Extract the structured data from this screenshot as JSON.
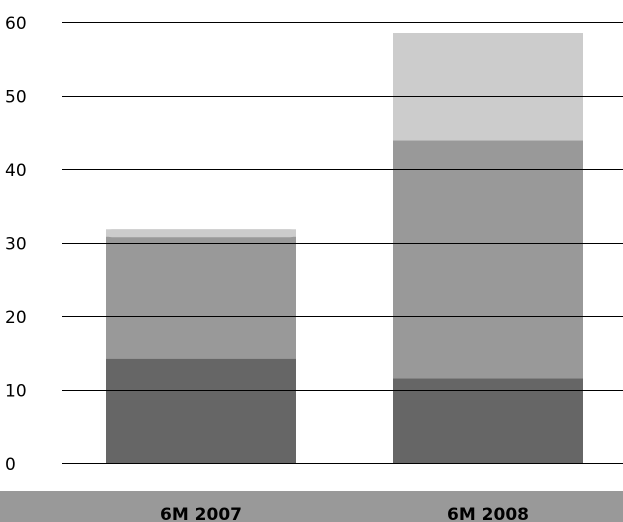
{
  "chart_data": {
    "type": "bar",
    "stacked": true,
    "categories": [
      "6M 2007",
      "6M 2008"
    ],
    "series": [
      {
        "values": [
          14.2,
          11.5
        ],
        "color": "#666666"
      },
      {
        "values": [
          16.6,
          32.4
        ],
        "color": "#999999"
      },
      {
        "values": [
          1.0,
          14.6
        ],
        "color": "#cccccc"
      }
    ],
    "ylim": [
      0,
      60
    ],
    "y_ticks": [
      "0",
      "10",
      "20",
      "30",
      "40",
      "50",
      "60"
    ],
    "grid": true,
    "gridline_color": "#000000",
    "category_band_color": "#999999",
    "legend": "none"
  }
}
